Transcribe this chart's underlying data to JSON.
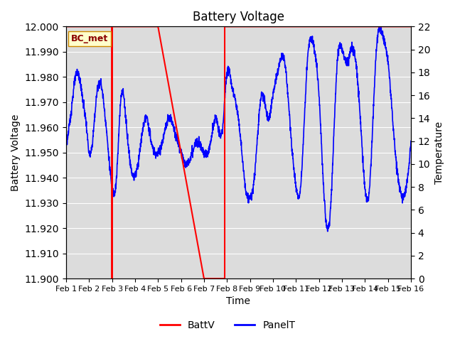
{
  "title": "Battery Voltage",
  "xlabel": "Time",
  "ylabel_left": "Battery Voltage",
  "ylabel_right": "Temperature",
  "ylim_left": [
    11.9,
    12.0
  ],
  "ylim_right": [
    0,
    22
  ],
  "x_ticks": [
    1,
    2,
    3,
    4,
    5,
    6,
    7,
    8,
    9,
    10,
    11,
    12,
    13,
    14,
    15,
    16
  ],
  "x_tick_labels": [
    "Feb 1",
    "Feb 2",
    "Feb 3",
    "Feb 4",
    "Feb 5",
    "Feb 6",
    "Feb 7",
    "Feb 8",
    "Feb 9",
    "Feb 10",
    "Feb 11",
    "Feb 12",
    "Feb 13",
    "Feb 14",
    "Feb 15",
    "Feb 16"
  ],
  "bg_color": "#dcdcdc",
  "legend_label": "BC_met",
  "legend_fc": "#ffffcc",
  "legend_ec": "#cc8800",
  "figsize": [
    6.4,
    4.8
  ],
  "dpi": 100
}
